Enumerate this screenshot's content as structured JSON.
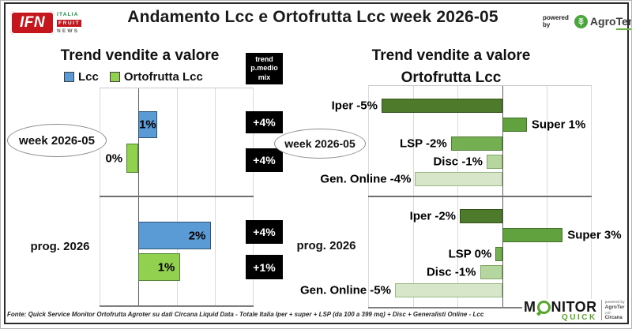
{
  "header": {
    "title": "Andamento Lcc e Ortofrutta Lcc week 2026-05",
    "powered_by": "powered by",
    "agroter_name_a": "Agro",
    "agroter_name_b": "Ter",
    "ifn": {
      "abbr": "IFN",
      "line1": "ITALIA",
      "line2": "FRUIT",
      "line3": "NEWS"
    }
  },
  "colors": {
    "lcc": "#5b9bd5",
    "ortofrutta": "#92d050",
    "iper": "#4e7a2c",
    "super": "#61a23f",
    "lsp": "#74af52",
    "disc": "#b6d6a0",
    "gen_online": "#d7e6c9",
    "accent_green": "#58a62c",
    "ifn_red": "#c4161c",
    "box_black": "#000000"
  },
  "chart_data": [
    {
      "type": "bar",
      "title": "Trend vendite a valore",
      "orientation": "horizontal",
      "xlim": [
        -1,
        3
      ],
      "gridline_step_pct": 1,
      "grid": true,
      "legend": [
        {
          "label": "Lcc",
          "color_key": "lcc"
        },
        {
          "label": "Ortofrutta Lcc",
          "color_key": "ortofrutta"
        }
      ],
      "side_title_lines": [
        "trend",
        "p.medio",
        "mix"
      ],
      "groups": [
        {
          "label": "week 2026-05",
          "bars": [
            {
              "series": "Lcc",
              "label": "1%",
              "value": 0.5,
              "color_key": "lcc"
            },
            {
              "series": "Ortofrutta Lcc",
              "label": "0%",
              "value": -0.3,
              "color_key": "ortofrutta"
            }
          ],
          "side_labels": [
            "+4%",
            "+4%"
          ]
        },
        {
          "label": "prog. 2026",
          "bars": [
            {
              "series": "Lcc",
              "label": "2%",
              "value": 1.9,
              "color_key": "lcc"
            },
            {
              "series": "Ortofrutta Lcc",
              "label": "1%",
              "value": 1.1,
              "color_key": "ortofrutta"
            }
          ],
          "side_labels": [
            "+4%",
            "+1%"
          ]
        }
      ]
    },
    {
      "type": "bar",
      "title_lines": [
        "Trend vendite a valore",
        "Ortofrutta Lcc"
      ],
      "orientation": "horizontal",
      "xlim": [
        -6,
        4
      ],
      "gridline_step_pct": 2,
      "grid": true,
      "groups": [
        {
          "label": "week 2026-05",
          "bars": [
            {
              "name": "Iper",
              "label": "Iper -5%",
              "value": -5.4,
              "color_key": "iper"
            },
            {
              "name": "Super",
              "label": "Super 1%",
              "value": 1.1,
              "color_key": "super"
            },
            {
              "name": "LSP",
              "label": "LSP -2%",
              "value": -2.3,
              "color_key": "lsp"
            },
            {
              "name": "Disc",
              "label": "Disc -1%",
              "value": -0.7,
              "color_key": "disc"
            },
            {
              "name": "Gen. Online",
              "label": "Gen. Online -4%",
              "value": -3.9,
              "color_key": "gen_online"
            }
          ]
        },
        {
          "label": "prog. 2026",
          "bars": [
            {
              "name": "Iper",
              "label": "Iper -2%",
              "value": -1.9,
              "color_key": "iper"
            },
            {
              "name": "Super",
              "label": "Super 3%",
              "value": 2.7,
              "color_key": "super"
            },
            {
              "name": "LSP",
              "label": "LSP 0%",
              "value": -0.3,
              "color_key": "lsp"
            },
            {
              "name": "Disc",
              "label": "Disc -1%",
              "value": -1.0,
              "color_key": "disc"
            },
            {
              "name": "Gen. Online",
              "label": "Gen. Online -5%",
              "value": -4.8,
              "color_key": "gen_online"
            }
          ]
        }
      ]
    }
  ],
  "footer": {
    "fonte": "Fonte: Quick Service Monitor Ortofrutta Agroter su dati Circana Liquid Data - Totale Italia Iper + super + LSP (da 100 a 399 mq) + Disc + Generalisti Online - Lcc",
    "monitor_logo": {
      "m": "M",
      "nitor": "NITOR",
      "quick": "QUICK",
      "powered_by": "powered by",
      "agroter": "AgroTer",
      "with": "with",
      "circana": "Circana"
    }
  }
}
